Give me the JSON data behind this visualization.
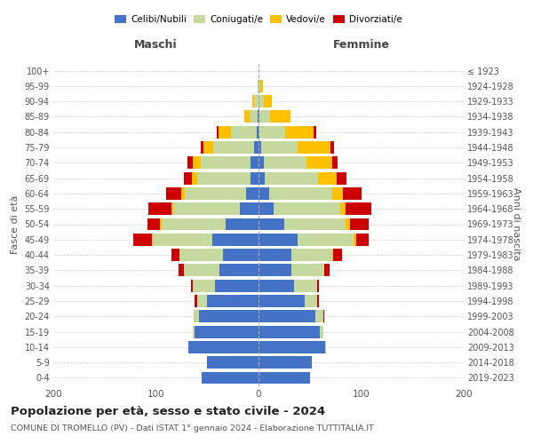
{
  "age_groups": [
    "0-4",
    "5-9",
    "10-14",
    "15-19",
    "20-24",
    "25-29",
    "30-34",
    "35-39",
    "40-44",
    "45-49",
    "50-54",
    "55-59",
    "60-64",
    "65-69",
    "70-74",
    "75-79",
    "80-84",
    "85-89",
    "90-94",
    "95-99",
    "100+"
  ],
  "birth_years": [
    "2019-2023",
    "2014-2018",
    "2009-2013",
    "2004-2008",
    "1999-2003",
    "1994-1998",
    "1989-1993",
    "1984-1988",
    "1979-1983",
    "1974-1978",
    "1969-1973",
    "1964-1968",
    "1959-1963",
    "1954-1958",
    "1949-1953",
    "1944-1948",
    "1939-1943",
    "1934-1938",
    "1929-1933",
    "1924-1928",
    "≤ 1923"
  ],
  "males": {
    "celibi": [
      55,
      50,
      68,
      62,
      58,
      50,
      42,
      38,
      35,
      45,
      32,
      18,
      12,
      8,
      8,
      4,
      2,
      1,
      0,
      0,
      0
    ],
    "coniugati": [
      0,
      0,
      0,
      2,
      5,
      10,
      22,
      35,
      42,
      58,
      62,
      65,
      60,
      52,
      48,
      40,
      25,
      8,
      4,
      1,
      0
    ],
    "vedovi": [
      0,
      0,
      0,
      0,
      0,
      0,
      0,
      0,
      0,
      1,
      2,
      2,
      3,
      5,
      8,
      10,
      12,
      5,
      2,
      0,
      0
    ],
    "divorziati": [
      0,
      0,
      0,
      0,
      0,
      2,
      2,
      5,
      8,
      18,
      12,
      22,
      15,
      8,
      5,
      2,
      2,
      0,
      0,
      0,
      0
    ]
  },
  "females": {
    "nubili": [
      50,
      52,
      65,
      60,
      55,
      45,
      35,
      32,
      32,
      38,
      25,
      15,
      10,
      6,
      5,
      3,
      1,
      1,
      0,
      0,
      0
    ],
    "coniugate": [
      0,
      0,
      1,
      3,
      8,
      12,
      22,
      32,
      40,
      55,
      60,
      65,
      62,
      52,
      42,
      35,
      25,
      10,
      5,
      2,
      0
    ],
    "vedove": [
      0,
      0,
      0,
      0,
      0,
      0,
      0,
      0,
      1,
      2,
      4,
      5,
      10,
      18,
      25,
      32,
      28,
      20,
      8,
      2,
      0
    ],
    "divorziate": [
      0,
      0,
      0,
      0,
      1,
      2,
      2,
      5,
      8,
      12,
      18,
      25,
      18,
      10,
      5,
      4,
      2,
      0,
      0,
      0,
      0
    ]
  },
  "colors": {
    "celibi": "#4472c4",
    "coniugati": "#c5d89d",
    "vedovi": "#ffc000",
    "divorziati": "#cc0000"
  },
  "title": "Popolazione per età, sesso e stato civile - 2024",
  "subtitle": "COMUNE DI TROMELLO (PV) - Dati ISTAT 1° gennaio 2024 - Elaborazione TUTTITALIA.IT",
  "xlabel_left": "Maschi",
  "xlabel_right": "Femmine",
  "ylabel_left": "Fasce di età",
  "ylabel_right": "Anni di nascita",
  "xlim": 200,
  "grid_color": "#cccccc"
}
